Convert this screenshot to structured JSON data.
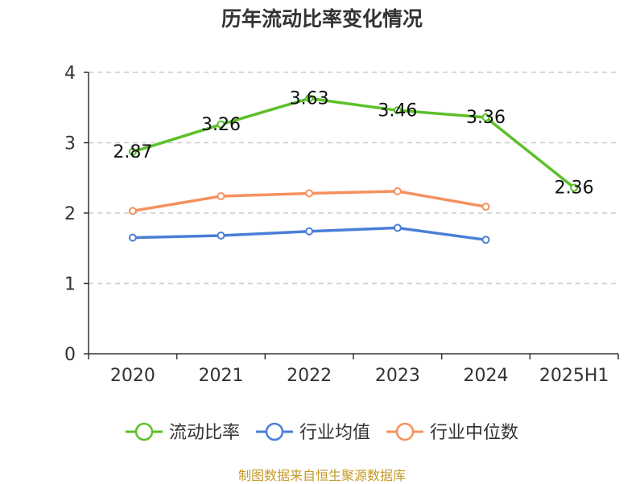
{
  "chart_data": {
    "type": "line",
    "title": "历年流动比率变化情况",
    "categories": [
      "2020",
      "2021",
      "2022",
      "2023",
      "2024",
      "2025H1"
    ],
    "ylim": [
      0,
      4
    ],
    "yticks": [
      "0",
      "1",
      "2",
      "3",
      "4"
    ],
    "grid": true,
    "legend_position": "bottom",
    "series": [
      {
        "name": "流动比率",
        "color": "#5cc02a",
        "values": [
          2.87,
          3.26,
          3.63,
          3.46,
          3.36,
          2.36
        ],
        "labels": [
          "2.87",
          "3.26",
          "3.63",
          "3.46",
          "3.36",
          "2.36"
        ]
      },
      {
        "name": "行业均值",
        "color": "#4a7fd8",
        "values": [
          1.65,
          1.68,
          1.74,
          1.79,
          1.62,
          null
        ]
      },
      {
        "name": "行业中位数",
        "color": "#f5915e",
        "values": [
          2.03,
          2.24,
          2.28,
          2.31,
          2.09,
          null
        ]
      }
    ]
  },
  "source": "制图数据来自恒生聚源数据库"
}
